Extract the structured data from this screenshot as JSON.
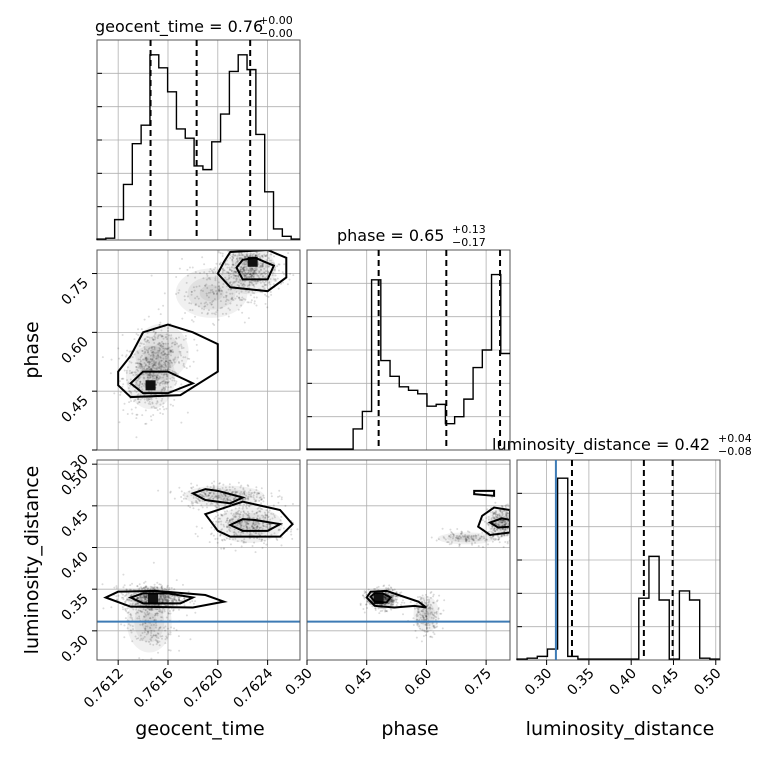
{
  "chart_data": {
    "type": "corner",
    "parameters": [
      "geocent_time",
      "phase",
      "luminosity_distance"
    ],
    "axes": {
      "geocent_time": {
        "label": "geocent_time",
        "range": [
          0.76103,
          0.76266
        ],
        "ticks": [
          0.7612,
          0.7616,
          0.762,
          0.7624
        ],
        "tick_labels": [
          "0.7612",
          "0.7616",
          "0.7620",
          "0.7624"
        ]
      },
      "phase": {
        "label": "phase",
        "range": [
          0.3,
          0.81
        ],
        "ticks": [
          0.3,
          0.45,
          0.6,
          0.75
        ],
        "tick_labels": [
          "0.30",
          "0.45",
          "0.60",
          "0.75"
        ]
      },
      "luminosity_distance": {
        "label": "luminosity_distance",
        "range": [
          0.265,
          0.505
        ],
        "ticks": [
          0.3,
          0.35,
          0.4,
          0.45,
          0.5
        ],
        "tick_labels": [
          "0.30",
          "0.35",
          "0.40",
          "0.45",
          "0.50"
        ]
      }
    },
    "diagonal_titles": [
      {
        "param": "geocent_time",
        "text": "geocent_time = 0.76",
        "plus": "+0.00",
        "minus": "−0.00"
      },
      {
        "param": "phase",
        "text": "phase = 0.65",
        "plus": "+0.13",
        "minus": "−0.17"
      },
      {
        "param": "luminosity_distance",
        "text": "luminosity_distance = 0.42",
        "plus": "+0.04",
        "minus": "−0.08"
      }
    ],
    "histograms": [
      {
        "param": "geocent_time",
        "ymax": 1.08,
        "quantiles": [
          0.76146,
          0.76183,
          0.76226
        ],
        "counts": [
          0.005,
          0.01,
          0.11,
          0.3,
          0.52,
          0.62,
          1.0,
          0.93,
          0.8,
          0.6,
          0.55,
          0.4,
          0.38,
          0.53,
          0.68,
          0.91,
          1.0,
          0.92,
          0.57,
          0.26,
          0.06,
          0.02,
          0.005
        ]
      },
      {
        "param": "phase",
        "ymax": 1.14,
        "quantiles": [
          0.48,
          0.65,
          0.785
        ],
        "counts": [
          0.005,
          0.005,
          0.005,
          0.005,
          0.005,
          0.12,
          0.22,
          0.97,
          0.51,
          0.42,
          0.36,
          0.34,
          0.32,
          0.25,
          0.26,
          0.15,
          0.19,
          0.29,
          0.47,
          0.57,
          1.0,
          0.55
        ]
      },
      {
        "param": "luminosity_distance",
        "ymax": 1.1,
        "quantiles": [
          0.33,
          0.415,
          0.449
        ],
        "counts": [
          0.005,
          0.01,
          0.02,
          0.06,
          1.0,
          0.02,
          0.005,
          0.005,
          0.005,
          0.005,
          0.005,
          0.005,
          0.34,
          0.57,
          0.33,
          0.005,
          0.38,
          0.33,
          0.01,
          0.005
        ]
      }
    ],
    "truths": {
      "luminosity_distance": 0.311
    },
    "pairs": [
      {
        "x": "geocent_time",
        "y": "phase",
        "clusters": [
          {
            "cx": 0.76146,
            "cy": 0.485,
            "sx": 0.00011,
            "sy": 0.045,
            "n": 520
          },
          {
            "cx": 0.76155,
            "cy": 0.55,
            "sx": 0.00012,
            "sy": 0.04,
            "n": 220
          },
          {
            "cx": 0.76225,
            "cy": 0.76,
            "sx": 0.00012,
            "sy": 0.035,
            "n": 620
          },
          {
            "cx": 0.76195,
            "cy": 0.7,
            "sx": 0.00016,
            "sy": 0.035,
            "n": 180
          }
        ],
        "contours": [
          [
            [
              0.7613,
              0.47
            ],
            [
              0.7614,
              0.445
            ],
            [
              0.7616,
              0.445
            ],
            [
              0.7618,
              0.47
            ],
            [
              0.7616,
              0.5
            ],
            [
              0.7614,
              0.5
            ]
          ],
          [
            [
              0.7612,
              0.465
            ],
            [
              0.7613,
              0.435
            ],
            [
              0.7617,
              0.44
            ],
            [
              0.762,
              0.5
            ],
            [
              0.762,
              0.57
            ],
            [
              0.7618,
              0.6
            ],
            [
              0.7616,
              0.62
            ],
            [
              0.7614,
              0.6
            ],
            [
              0.7613,
              0.54
            ],
            [
              0.7612,
              0.5
            ]
          ],
          [
            [
              0.76215,
              0.765
            ],
            [
              0.7622,
              0.735
            ],
            [
              0.7624,
              0.735
            ],
            [
              0.76245,
              0.77
            ],
            [
              0.7623,
              0.79
            ],
            [
              0.7622,
              0.785
            ]
          ],
          [
            [
              0.762,
              0.75
            ],
            [
              0.7621,
              0.715
            ],
            [
              0.7624,
              0.705
            ],
            [
              0.76255,
              0.74
            ],
            [
              0.76255,
              0.79
            ],
            [
              0.7624,
              0.81
            ],
            [
              0.7621,
              0.805
            ],
            [
              0.76205,
              0.78
            ]
          ]
        ],
        "peaks": [
          [
            0.76146,
            0.465
          ],
          [
            0.76228,
            0.78
          ]
        ]
      },
      {
        "x": "geocent_time",
        "y": "luminosity_distance",
        "clusters": [
          {
            "cx": 0.76148,
            "cy": 0.339,
            "sx": 0.00012,
            "sy": 0.008,
            "n": 650
          },
          {
            "cx": 0.76145,
            "cy": 0.31,
            "sx": 0.0001,
            "sy": 0.02,
            "n": 200
          },
          {
            "cx": 0.76205,
            "cy": 0.462,
            "sx": 0.00018,
            "sy": 0.007,
            "n": 300
          },
          {
            "cx": 0.76225,
            "cy": 0.427,
            "sx": 0.00015,
            "sy": 0.012,
            "n": 420
          }
        ],
        "contours": [
          [
            [
              0.7613,
              0.34
            ],
            [
              0.7614,
              0.333
            ],
            [
              0.7617,
              0.333
            ],
            [
              0.7618,
              0.34
            ],
            [
              0.7616,
              0.345
            ],
            [
              0.7614,
              0.345
            ]
          ],
          [
            [
              0.7611,
              0.34
            ],
            [
              0.7613,
              0.329
            ],
            [
              0.7618,
              0.328
            ],
            [
              0.76205,
              0.335
            ],
            [
              0.7619,
              0.343
            ],
            [
              0.7615,
              0.348
            ],
            [
              0.7612,
              0.347
            ]
          ],
          [
            [
              0.7618,
              0.465
            ],
            [
              0.7619,
              0.457
            ],
            [
              0.7621,
              0.453
            ],
            [
              0.7622,
              0.46
            ],
            [
              0.762,
              0.468
            ],
            [
              0.7619,
              0.47
            ]
          ],
          [
            [
              0.7621,
              0.427
            ],
            [
              0.7622,
              0.42
            ],
            [
              0.7624,
              0.42
            ],
            [
              0.7625,
              0.428
            ],
            [
              0.7623,
              0.433
            ],
            [
              0.7622,
              0.434
            ]
          ],
          [
            [
              0.762,
              0.42
            ],
            [
              0.7621,
              0.413
            ],
            [
              0.7625,
              0.413
            ],
            [
              0.7626,
              0.428
            ],
            [
              0.7625,
              0.445
            ],
            [
              0.7622,
              0.455
            ],
            [
              0.7619,
              0.44
            ]
          ]
        ],
        "peaks": [
          [
            0.76148,
            0.339
          ]
        ]
      },
      {
        "x": "phase",
        "y": "luminosity_distance",
        "clusters": [
          {
            "cx": 0.49,
            "cy": 0.338,
            "sx": 0.02,
            "sy": 0.006,
            "n": 480
          },
          {
            "cx": 0.6,
            "cy": 0.32,
            "sx": 0.018,
            "sy": 0.012,
            "n": 180
          },
          {
            "cx": 0.79,
            "cy": 0.43,
            "sx": 0.02,
            "sy": 0.01,
            "n": 340
          },
          {
            "cx": 0.7,
            "cy": 0.411,
            "sx": 0.04,
            "sy": 0.004,
            "n": 120
          }
        ],
        "contours": [
          [
            [
              0.46,
              0.341
            ],
            [
              0.47,
              0.335
            ],
            [
              0.5,
              0.334
            ],
            [
              0.51,
              0.34
            ],
            [
              0.49,
              0.345
            ],
            [
              0.47,
              0.345
            ]
          ],
          [
            [
              0.45,
              0.34
            ],
            [
              0.47,
              0.33
            ],
            [
              0.52,
              0.328
            ],
            [
              0.57,
              0.33
            ],
            [
              0.6,
              0.328
            ],
            [
              0.58,
              0.335
            ],
            [
              0.53,
              0.343
            ],
            [
              0.5,
              0.348
            ],
            [
              0.46,
              0.347
            ]
          ],
          [
            [
              0.76,
              0.43
            ],
            [
              0.78,
              0.424
            ],
            [
              0.81,
              0.425
            ],
            [
              0.81,
              0.433
            ],
            [
              0.79,
              0.435
            ]
          ],
          [
            [
              0.73,
              0.425
            ],
            [
              0.76,
              0.415
            ],
            [
              0.81,
              0.418
            ],
            [
              0.81,
              0.445
            ],
            [
              0.77,
              0.448
            ],
            [
              0.74,
              0.438
            ]
          ],
          [
            [
              0.72,
              0.464
            ],
            [
              0.77,
              0.462
            ],
            [
              0.77,
              0.468
            ],
            [
              0.72,
              0.468
            ]
          ]
        ],
        "peaks": [
          [
            0.48,
            0.338
          ]
        ]
      }
    ]
  }
}
